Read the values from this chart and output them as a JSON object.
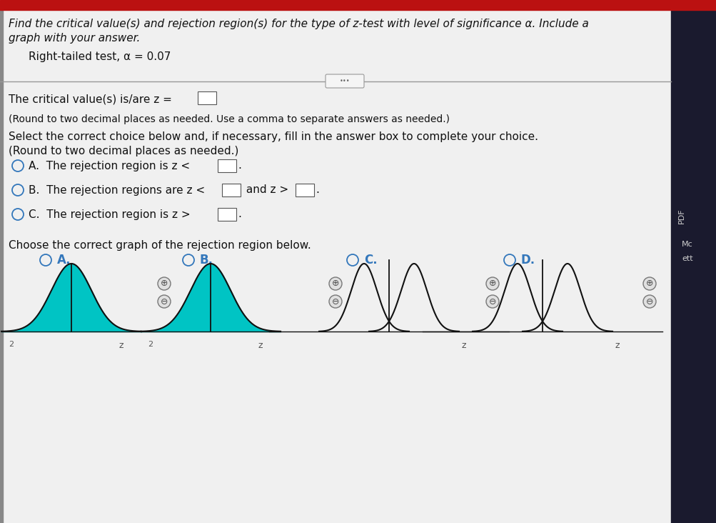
{
  "title_line1": "Find the critical value(s) and rejection region(s) for the type of z-test with level of significance α. Include a",
  "title_line2": "graph with your answer.",
  "subtitle": "Right-tailed test, α = 0.07",
  "critical_label": "The critical value(s) is/are z =",
  "round_note1": "(Round to two decimal places as needed. Use a comma to separate answers as needed.)",
  "select_label": "Select the correct choice below and, if necessary, fill in the answer box to complete your choice.",
  "round_note2": "(Round to two decimal places as needed.)",
  "graph_prompt": "Choose the correct graph of the rejection region below.",
  "graph_labels": [
    "A.",
    "B.",
    "C.",
    "D."
  ],
  "bg_color": "#dcdcdc",
  "content_bg": "#f0f0f0",
  "text_color": "#111111",
  "radio_color": "#3377bb",
  "teal_color": "#00c4c4",
  "separator_color": "#999999",
  "top_bar_color": "#bb1111",
  "dark_panel_color": "#1a1a2e",
  "right_label_color": "#cccccc"
}
